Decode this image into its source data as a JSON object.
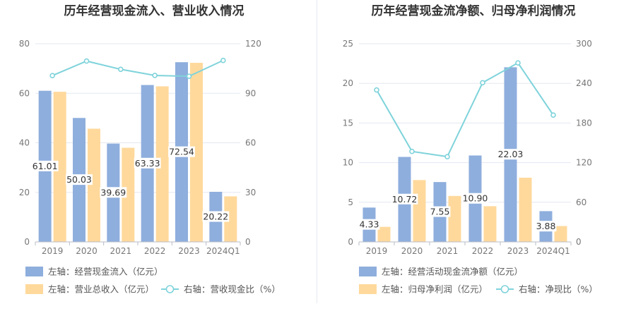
{
  "colors": {
    "blue": "#8eaedd",
    "orange": "#ffd99c",
    "line": "#7fd3db",
    "grid": "#e3e7f0",
    "axis": "#b8bcc6"
  },
  "chart_data": [
    {
      "type": "bar",
      "title": "历年经营现金流入、营业收入情况",
      "categories": [
        "2019",
        "2020",
        "2021",
        "2022",
        "2023",
        "2024Q1"
      ],
      "left_axis": {
        "min": 0,
        "max": 80,
        "ticks": [
          0,
          20,
          40,
          60,
          80
        ]
      },
      "right_axis": {
        "min": 0,
        "max": 120,
        "ticks": [
          0,
          30,
          60,
          90,
          120
        ]
      },
      "series": [
        {
          "name": "左轴：经营现金流入（亿元）",
          "axis": "left",
          "kind": "bar",
          "color": "blue",
          "values": [
            61.01,
            50.03,
            39.69,
            63.33,
            72.54,
            20.22
          ],
          "labels": [
            "61.01",
            "50.03",
            "39.69",
            "63.33",
            "72.54",
            "20.22"
          ]
        },
        {
          "name": "左轴：营业总收入（亿元）",
          "axis": "left",
          "kind": "bar",
          "color": "orange",
          "values": [
            60.6,
            45.7,
            38.0,
            62.8,
            72.3,
            18.4
          ]
        },
        {
          "name": "右轴：营收现金比（%）",
          "axis": "right",
          "kind": "line",
          "color": "line",
          "values": [
            100.7,
            109.5,
            104.5,
            100.8,
            100.3,
            109.9
          ]
        }
      ]
    },
    {
      "type": "bar",
      "title": "历年经营现金流净额、归母净利润情况",
      "categories": [
        "2019",
        "2020",
        "2021",
        "2022",
        "2023",
        "2024Q1"
      ],
      "left_axis": {
        "min": 0,
        "max": 25,
        "ticks": [
          0,
          5,
          10,
          15,
          20,
          25
        ]
      },
      "right_axis": {
        "min": 0,
        "max": 300,
        "ticks": [
          0,
          60,
          120,
          180,
          240,
          300
        ]
      },
      "series": [
        {
          "name": "左轴：经营活动现金流净额（亿元）",
          "axis": "left",
          "kind": "bar",
          "color": "blue",
          "values": [
            4.33,
            10.72,
            7.55,
            10.9,
            22.03,
            3.88
          ],
          "labels": [
            "4.33",
            "10.72",
            "7.55",
            "10.90",
            "22.03",
            "3.88"
          ]
        },
        {
          "name": "左轴：归母净利润（亿元）",
          "axis": "left",
          "kind": "bar",
          "color": "orange",
          "values": [
            1.9,
            7.8,
            5.8,
            4.5,
            8.1,
            2.0
          ]
        },
        {
          "name": "右轴：净现比（%）",
          "axis": "right",
          "kind": "line",
          "color": "line",
          "values": [
            230,
            137,
            129,
            241,
            271,
            192
          ]
        }
      ]
    }
  ]
}
